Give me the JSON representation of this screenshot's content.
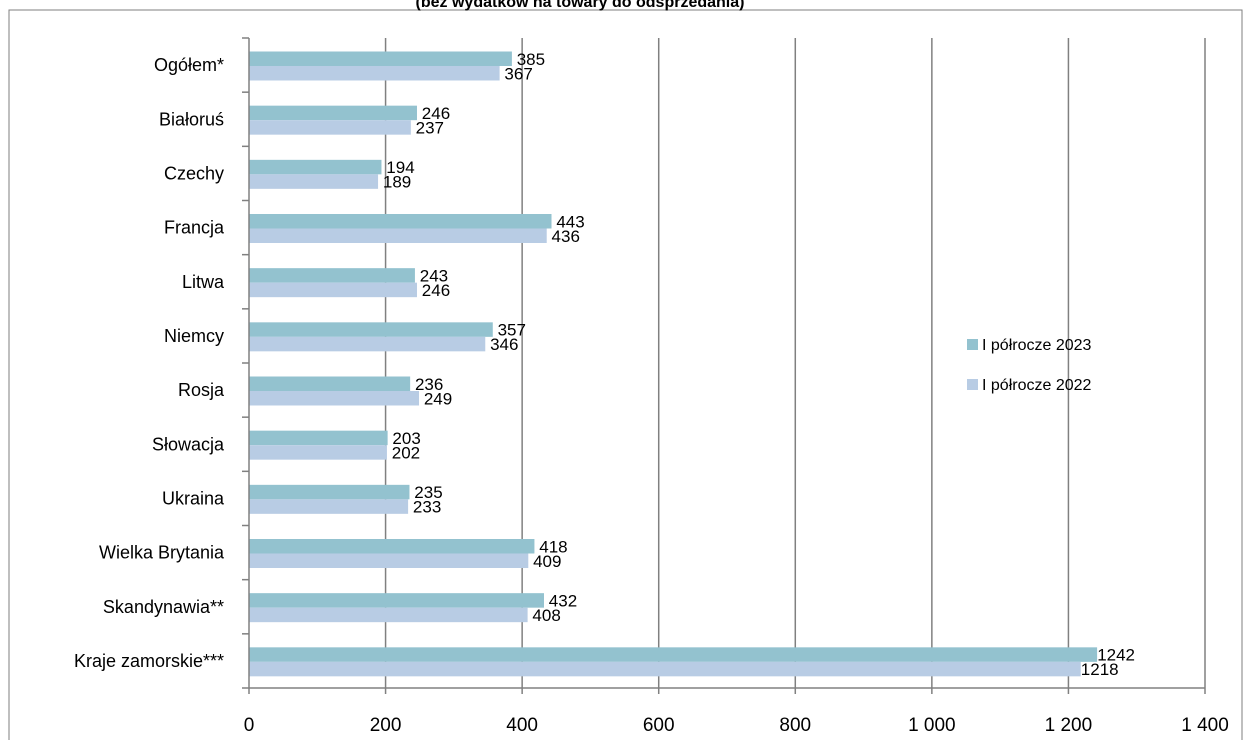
{
  "chart_data": {
    "type": "bar",
    "orientation": "horizontal",
    "subtitle": "(bez wydatków na towary do odsprzedania)",
    "categories": [
      "Ogółem*",
      "Białoruś",
      "Czechy",
      "Francja",
      "Litwa",
      "Niemcy",
      "Rosja",
      "Słowacja",
      "Ukraina",
      "Wielka Brytania",
      "Skandynawia**",
      "Kraje zamorskie***"
    ],
    "series": [
      {
        "name": "I półrocze 2023",
        "color": "#93c2cf",
        "values": [
          385,
          246,
          194,
          443,
          243,
          357,
          236,
          203,
          235,
          418,
          432,
          1242
        ],
        "value_labels": [
          "385",
          "246",
          "194",
          "443",
          "243",
          "357",
          "236",
          "203",
          "235",
          "418",
          "432",
          "1242"
        ]
      },
      {
        "name": "I półrocze 2022",
        "color": "#b8cce4",
        "values": [
          367,
          237,
          189,
          436,
          246,
          346,
          249,
          202,
          233,
          409,
          408,
          1218
        ],
        "value_labels": [
          "367",
          "237",
          "189",
          "436",
          "246",
          "346",
          "249",
          "202",
          "233",
          "409",
          "408",
          "1218"
        ]
      }
    ],
    "xlim": [
      0,
      1400
    ],
    "x_ticks": [
      0,
      200,
      400,
      600,
      800,
      1000,
      1200,
      1400
    ],
    "x_tick_labels": [
      "0",
      "200",
      "400",
      "600",
      "800",
      "1 000",
      "1 200",
      "1 400"
    ],
    "grid": "vertical",
    "legend_position": "right"
  }
}
